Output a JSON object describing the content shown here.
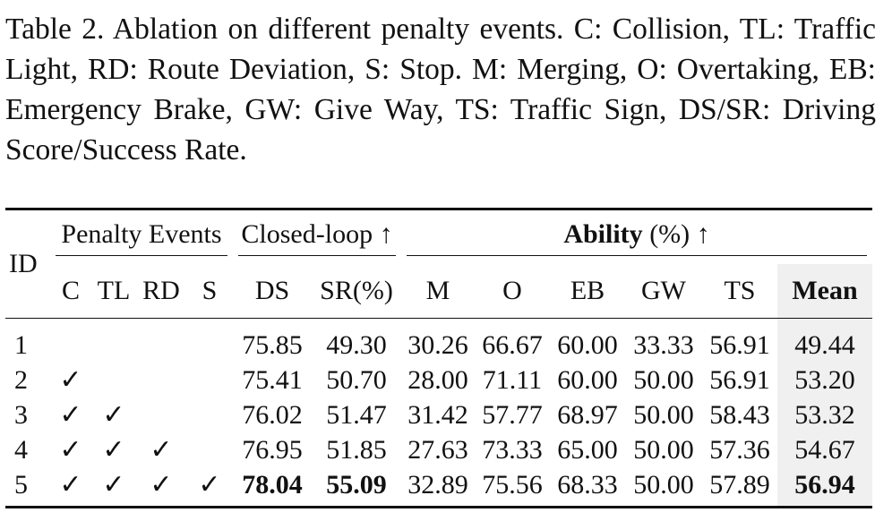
{
  "caption": "Table 2.  Ablation on different penalty events.  C: Collision, TL: Traffic Light, RD: Route Deviation, S: Stop.  M: Merging, O: Overtaking, EB: Emergency Brake, GW: Give Way, TS: Traffic Sign, DS/SR: Driving Score/Success Rate.",
  "header": {
    "id": "ID",
    "penalty_group": "Penalty Events",
    "closed_loop_group": "Closed-loop ↑",
    "ability_bold": "Ability",
    "ability_rest": " (%) ↑",
    "cols": [
      "C",
      "TL",
      "RD",
      "S",
      "DS",
      "SR(%)",
      "M",
      "O",
      "EB",
      "GW",
      "TS",
      "Mean"
    ]
  },
  "rows": [
    {
      "id": "1",
      "c": "",
      "tl": "",
      "rd": "",
      "s": "",
      "ds": "75.85",
      "sr": "49.30",
      "m": "30.26",
      "o": "66.67",
      "eb": "60.00",
      "gw": "33.33",
      "ts": "56.91",
      "mean": "49.44"
    },
    {
      "id": "2",
      "c": "✓",
      "tl": "",
      "rd": "",
      "s": "",
      "ds": "75.41",
      "sr": "50.70",
      "m": "28.00",
      "o": "71.11",
      "eb": "60.00",
      "gw": "50.00",
      "ts": "56.91",
      "mean": "53.20"
    },
    {
      "id": "3",
      "c": "✓",
      "tl": "✓",
      "rd": "",
      "s": "",
      "ds": "76.02",
      "sr": "51.47",
      "m": "31.42",
      "o": "57.77",
      "eb": "68.97",
      "gw": "50.00",
      "ts": "58.43",
      "mean": "53.32"
    },
    {
      "id": "4",
      "c": "✓",
      "tl": "✓",
      "rd": "✓",
      "s": "",
      "ds": "76.95",
      "sr": "51.85",
      "m": "27.63",
      "o": "73.33",
      "eb": "65.00",
      "gw": "50.00",
      "ts": "57.36",
      "mean": "54.67"
    },
    {
      "id": "5",
      "c": "✓",
      "tl": "✓",
      "rd": "✓",
      "s": "✓",
      "ds": "78.04",
      "sr": "55.09",
      "m": "32.89",
      "o": "75.56",
      "eb": "68.33",
      "gw": "50.00",
      "ts": "57.89",
      "mean": "56.94"
    }
  ]
}
